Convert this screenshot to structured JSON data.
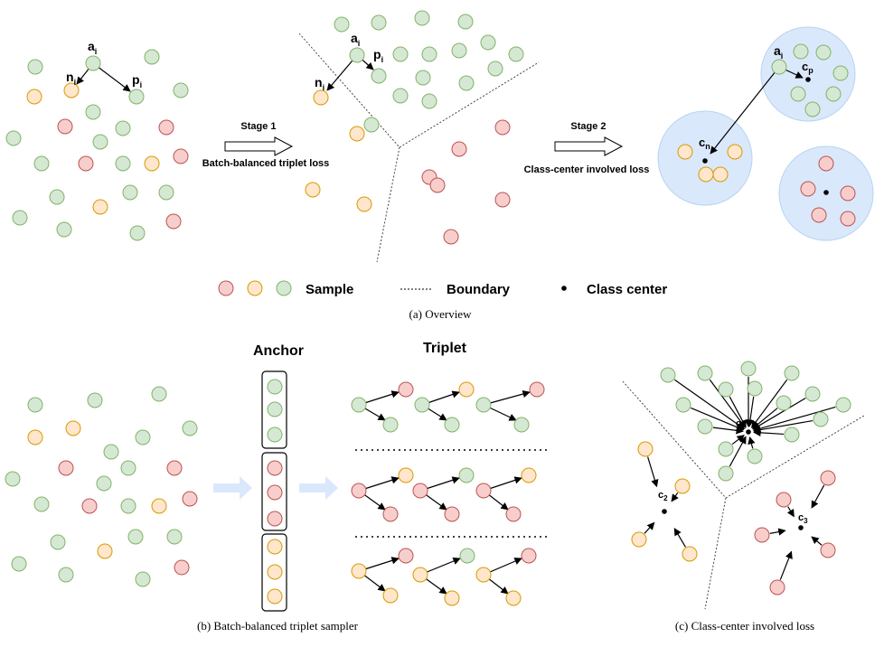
{
  "colors": {
    "green_fill": "#d5e8d4",
    "green_stroke": "#82b366",
    "orange_fill": "#ffe6cc",
    "orange_stroke": "#d79b00",
    "red_fill": "#f8cecc",
    "red_stroke": "#b85450",
    "cluster_fill": "#dae8fc",
    "cluster_stroke": "#b6d4f0",
    "flow_arrow": "#dae8fc"
  },
  "overview": {
    "stage1_title": "Stage 1",
    "stage1_loss": "Batch-balanced triplet loss",
    "stage2_title": "Stage 2",
    "stage2_loss": "Class-center involved loss",
    "caption": "(a) Overview"
  },
  "legend": {
    "sample": "Sample",
    "boundary": "Boundary",
    "class_center": "Class center"
  },
  "point_labels": {
    "anchor": "a",
    "positive": "p",
    "negative": "n",
    "index": "i",
    "center_pos_base": "c",
    "center_pos_sub": "p",
    "center_neg_base": "c",
    "center_neg_sub": "n"
  },
  "sampler": {
    "anchor_title": "Anchor",
    "triplet_title": "Triplet",
    "caption": "(b) Batch-balanced triplet sampler"
  },
  "center_loss": {
    "c1_base": "c",
    "c1_sub": "1",
    "c2_base": "c",
    "c2_sub": "2",
    "c3_base": "c",
    "c3_sub": "3",
    "caption": "(c) Class-center involved loss"
  }
}
